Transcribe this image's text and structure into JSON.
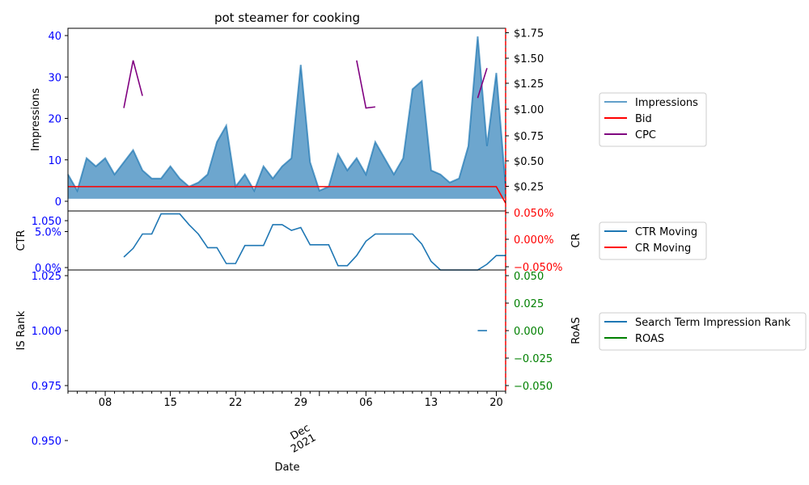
{
  "chart_data": {
    "type": "area",
    "title": "pot steamer for cooking",
    "xlabel": "Date",
    "x_tick_labels": [
      "08",
      "15",
      "22",
      "29",
      "06",
      "13",
      "20"
    ],
    "x_month_label": "Dec",
    "x_year_label": "2021",
    "x_dates": [
      "2021-11-04",
      "2021-11-05",
      "2021-11-06",
      "2021-11-07",
      "2021-11-08",
      "2021-11-09",
      "2021-11-10",
      "2021-11-11",
      "2021-11-12",
      "2021-11-13",
      "2021-11-14",
      "2021-11-15",
      "2021-11-16",
      "2021-11-17",
      "2021-11-18",
      "2021-11-19",
      "2021-11-20",
      "2021-11-21",
      "2021-11-22",
      "2021-11-23",
      "2021-11-24",
      "2021-11-25",
      "2021-11-26",
      "2021-11-27",
      "2021-11-28",
      "2021-11-29",
      "2021-11-30",
      "2021-12-01",
      "2021-12-02",
      "2021-12-03",
      "2021-12-04",
      "2021-12-05",
      "2021-12-06",
      "2021-12-07",
      "2021-12-08",
      "2021-12-09",
      "2021-12-10",
      "2021-12-11",
      "2021-12-12",
      "2021-12-13",
      "2021-12-14",
      "2021-12-15",
      "2021-12-16",
      "2021-12-17",
      "2021-12-18",
      "2021-12-19",
      "2021-12-20",
      "2021-12-21"
    ],
    "panels": [
      {
        "id": "impressions",
        "left_label": "Impressions",
        "left_ticks": [
          "0",
          "10",
          "20",
          "30",
          "40"
        ],
        "left_ylim": [
          -3,
          42
        ],
        "right_ticks": [
          "$0.25",
          "$0.50",
          "$0.75",
          "$1.00",
          "$1.25",
          "$1.50",
          "$1.75"
        ],
        "right_ylim": [
          0.13,
          1.78
        ],
        "series": [
          {
            "name": "Impressions",
            "type": "area",
            "axis": "left",
            "color": "#1f77b4",
            "values": [
              6,
              2,
              10,
              8,
              10,
              6,
              9,
              12,
              7,
              5,
              5,
              8,
              5,
              3,
              4,
              6,
              14,
              18,
              3,
              6,
              2,
              8,
              5,
              8,
              10,
              33,
              9,
              2,
              3,
              11,
              7,
              10,
              6,
              14,
              10,
              6,
              10,
              27,
              29,
              7,
              6,
              4,
              5,
              13,
              40,
              13,
              31,
              3
            ]
          },
          {
            "name": "Bid",
            "type": "line",
            "axis": "right",
            "color": "#ff0000",
            "values": [
              0.35,
              0.35,
              0.35,
              0.35,
              0.35,
              0.35,
              0.35,
              0.35,
              0.35,
              0.35,
              0.35,
              0.35,
              0.35,
              0.35,
              0.35,
              0.35,
              0.35,
              0.35,
              0.35,
              0.35,
              0.35,
              0.35,
              0.35,
              0.35,
              0.35,
              0.35,
              0.35,
              0.35,
              0.35,
              0.35,
              0.35,
              0.35,
              0.35,
              0.35,
              0.35,
              0.35,
              0.35,
              0.35,
              0.35,
              0.35,
              0.35,
              0.35,
              0.35,
              0.35,
              0.35,
              0.35,
              0.35,
              0.2
            ]
          },
          {
            "name": "CPC",
            "type": "line",
            "axis": "right",
            "color": "#800080",
            "values": [
              null,
              null,
              null,
              null,
              null,
              null,
              1.06,
              1.49,
              1.17,
              null,
              null,
              null,
              null,
              null,
              null,
              null,
              null,
              null,
              null,
              null,
              null,
              null,
              null,
              null,
              null,
              null,
              null,
              null,
              null,
              null,
              null,
              1.49,
              1.06,
              1.07,
              null,
              null,
              null,
              null,
              null,
              null,
              null,
              null,
              null,
              null,
              1.15,
              1.42,
              null,
              null
            ]
          }
        ]
      },
      {
        "id": "ctr",
        "left_label": "CTR",
        "left_ticks": [
          "0.0%",
          "5.0%"
        ],
        "left_ylim": [
          0,
          0.082
        ],
        "right_label": "CR",
        "right_ticks": [
          "−0.050%",
          "0.000%",
          "0.050%"
        ],
        "right_ylim": [
          -0.055,
          0.055
        ],
        "series": [
          {
            "name": "CTR Moving",
            "type": "line",
            "axis": "left",
            "color": "#1f77b4",
            "values": [
              null,
              null,
              null,
              null,
              null,
              null,
              0.018,
              0.03,
              0.05,
              0.05,
              0.078,
              0.078,
              0.078,
              0.063,
              0.05,
              0.031,
              0.031,
              0.009,
              0.009,
              0.034,
              0.034,
              0.034,
              0.063,
              0.063,
              0.055,
              0.059,
              0.035,
              0.035,
              0.035,
              0.006,
              0.006,
              0.02,
              0.04,
              0.05,
              0.05,
              0.05,
              0.05,
              0.05,
              0.036,
              0.012,
              0.0,
              0.0,
              0.0,
              0.0,
              0.0,
              0.008,
              0.02,
              0.02
            ]
          },
          {
            "name": "CR Moving",
            "type": "line",
            "axis": "right",
            "color": "#ff0000",
            "values": []
          }
        ]
      },
      {
        "id": "isrank",
        "left_label": "IS Rank",
        "left_ticks": [
          "0.950",
          "0.975",
          "1.000",
          "1.025",
          "1.050"
        ],
        "left_ylim": [
          0.945,
          1.055
        ],
        "right_label": "RoAS",
        "right_ticks": [
          "−0.050",
          "−0.025",
          "0.000",
          "0.025",
          "0.050"
        ],
        "right_ylim": [
          -0.055,
          0.055
        ],
        "series": [
          {
            "name": "Search Term Impression Rank",
            "type": "line",
            "axis": "left",
            "color": "#1f77b4",
            "values": [
              null,
              null,
              null,
              null,
              null,
              null,
              null,
              null,
              null,
              null,
              null,
              null,
              null,
              null,
              null,
              null,
              null,
              null,
              null,
              null,
              null,
              null,
              null,
              null,
              null,
              null,
              null,
              null,
              null,
              null,
              null,
              null,
              null,
              null,
              null,
              null,
              null,
              null,
              null,
              null,
              null,
              null,
              null,
              null,
              1.0,
              1.0,
              null,
              null
            ]
          },
          {
            "name": "ROAS",
            "type": "line",
            "axis": "right",
            "color": "#008000",
            "values": []
          }
        ]
      }
    ],
    "legends": [
      [
        "Impressions",
        "Bid",
        "CPC"
      ],
      [
        "CTR Moving",
        "CR Moving"
      ],
      [
        "Search Term Impression Rank",
        "ROAS"
      ]
    ],
    "colors": {
      "left_axis_ticks": "#0000ff",
      "right_axis_ticks_top": "#000000",
      "right_axis_ticks_mid": "#ff0000",
      "right_axis_ticks_bottom": "#008000",
      "area_fill": "#1f77b4",
      "vline": "#ff0000"
    }
  }
}
